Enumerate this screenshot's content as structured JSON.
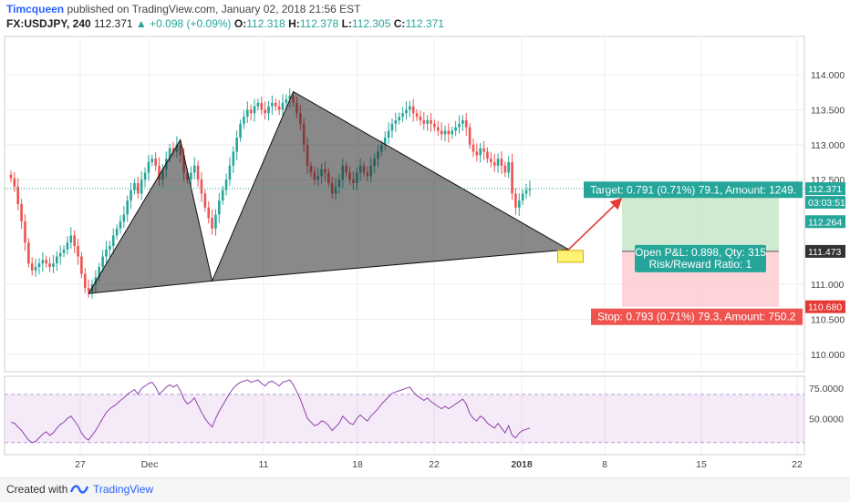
{
  "header": {
    "user": "Timcqueen",
    "published": "published on TradingView.com, January 02, 2018 21:56 EST",
    "symbol": "FX:USDJPY, 240",
    "last": "112.371",
    "change": "+0.098 (+0.09%)",
    "ohlc": [
      {
        "label": "O:",
        "value": "112.318"
      },
      {
        "label": "H:",
        "value": "112.378"
      },
      {
        "label": "L:",
        "value": "112.305"
      },
      {
        "label": "C:",
        "value": "112.371"
      }
    ]
  },
  "footer": {
    "created": "Created with",
    "brand": "TradingView"
  },
  "colors": {
    "up": "#26a69a",
    "down": "#ef5350",
    "target": "#26a69a",
    "stop": "#ef5350",
    "rsi": "#8e44ad"
  },
  "chart_data": [
    {
      "type": "candlestick",
      "price_axis_ticks": [
        "114.000",
        "113.500",
        "113.000",
        "112.500",
        "111.000",
        "110.500",
        "110.000"
      ],
      "ylim": [
        109.75,
        114.55
      ],
      "x_axis_ticks": [
        "27",
        "Dec",
        "11",
        "18",
        "22",
        "2018",
        "8",
        "15",
        "22"
      ],
      "grid": true,
      "price_labels": {
        "last": "112.371",
        "countdown": "03:03:51",
        "entry_top": "112.264",
        "entry": "111.473",
        "stop": "110.680"
      },
      "position": {
        "entry": 111.473,
        "target": 112.264,
        "stop": 110.68,
        "target_label": "Target: 0.791 (0.71%) 79.1, Amount: 1249.",
        "stop_label": "Stop: 0.793 (0.71%) 79.3, Amount: 750.2",
        "pnl_label": "Open P&L: 0.898, Qty: 315",
        "rr_label": "Risk/Reward Ratio: 1"
      },
      "pattern_points": [
        {
          "bar": 22,
          "price": 110.87
        },
        {
          "bar": 48,
          "price": 113.07
        },
        {
          "bar": 57,
          "price": 111.05
        },
        {
          "bar": 80,
          "price": 113.76
        },
        {
          "bar": 158,
          "price": 111.5
        }
      ],
      "closes": [
        112.52,
        112.4,
        112.15,
        111.9,
        111.6,
        111.3,
        111.2,
        111.25,
        111.3,
        111.35,
        111.3,
        111.25,
        111.3,
        111.4,
        111.45,
        111.5,
        111.6,
        111.7,
        111.55,
        111.4,
        111.15,
        110.95,
        110.9,
        111.0,
        111.1,
        111.25,
        111.4,
        111.5,
        111.55,
        111.7,
        111.8,
        111.9,
        112.0,
        112.2,
        112.35,
        112.45,
        112.3,
        112.5,
        112.6,
        112.75,
        112.8,
        112.7,
        112.5,
        112.65,
        112.8,
        112.95,
        112.9,
        113.0,
        112.85,
        112.6,
        112.5,
        112.6,
        112.7,
        112.5,
        112.3,
        112.1,
        111.95,
        111.8,
        112.0,
        112.2,
        112.35,
        112.5,
        112.7,
        112.9,
        113.1,
        113.3,
        113.4,
        113.5,
        113.45,
        113.55,
        113.6,
        113.5,
        113.45,
        113.55,
        113.6,
        113.55,
        113.5,
        113.6,
        113.65,
        113.7,
        113.6,
        113.45,
        113.3,
        113.0,
        112.7,
        112.6,
        112.5,
        112.55,
        112.65,
        112.6,
        112.45,
        112.3,
        112.4,
        112.5,
        112.7,
        112.6,
        112.5,
        112.45,
        112.6,
        112.7,
        112.6,
        112.55,
        112.7,
        112.8,
        112.9,
        113.0,
        113.1,
        113.2,
        113.3,
        113.35,
        113.4,
        113.45,
        113.5,
        113.55,
        113.45,
        113.4,
        113.35,
        113.3,
        113.35,
        113.3,
        113.25,
        113.2,
        113.15,
        113.2,
        113.15,
        113.2,
        113.25,
        113.3,
        113.35,
        113.25,
        113.0,
        112.9,
        112.85,
        112.95,
        112.9,
        112.8,
        112.75,
        112.7,
        112.8,
        112.7,
        112.6,
        112.75,
        112.3,
        112.1,
        112.2,
        112.3,
        112.35,
        112.37
      ],
      "rsi": {
        "ticks": [
          "75.0000",
          "50.0000"
        ],
        "ylim": [
          20,
          85
        ],
        "band": [
          70,
          30
        ],
        "values": [
          47,
          46,
          43,
          40,
          36,
          32,
          30,
          31,
          34,
          37,
          39,
          36,
          38,
          42,
          45,
          47,
          50,
          52,
          48,
          44,
          38,
          34,
          32,
          36,
          40,
          45,
          50,
          55,
          58,
          60,
          62,
          65,
          67,
          70,
          72,
          74,
          70,
          75,
          77,
          79,
          80,
          76,
          70,
          73,
          76,
          78,
          76,
          78,
          73,
          66,
          62,
          64,
          67,
          61,
          55,
          50,
          46,
          43,
          50,
          56,
          61,
          66,
          71,
          75,
          78,
          80,
          81,
          82,
          80,
          81,
          82,
          79,
          77,
          80,
          81,
          79,
          77,
          80,
          81,
          82,
          78,
          72,
          66,
          58,
          50,
          47,
          44,
          45,
          48,
          47,
          44,
          40,
          43,
          46,
          52,
          49,
          46,
          45,
          50,
          53,
          50,
          48,
          52,
          55,
          58,
          62,
          65,
          68,
          71,
          72,
          73,
          74,
          75,
          76,
          72,
          69,
          67,
          65,
          67,
          64,
          62,
          60,
          58,
          60,
          58,
          60,
          62,
          64,
          66,
          62,
          54,
          50,
          48,
          52,
          50,
          46,
          44,
          42,
          46,
          42,
          38,
          44,
          36,
          34,
          38,
          40,
          41,
          42
        ]
      }
    }
  ]
}
